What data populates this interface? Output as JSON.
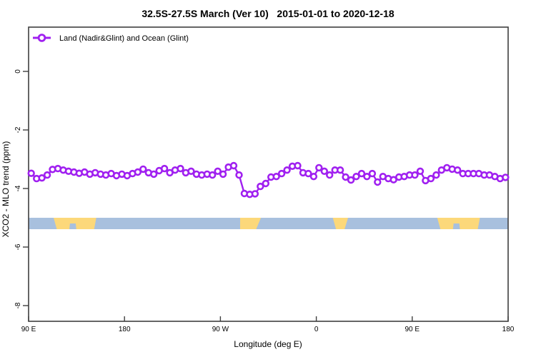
{
  "title": "32.5S-27.5S March (Ver 10)   2015-01-01 to 2020-12-18",
  "legend": {
    "label": "Land (Nadir&Glint) and Ocean (Glint)",
    "position": "top-left-inside"
  },
  "colors": {
    "series": "#a020f0",
    "marker_fill": "#ffffff",
    "ocean_band": "#a8c0de",
    "land_band": "#fcd87a",
    "frame": "#3f3f3f",
    "text": "#000000"
  },
  "axes": {
    "x": {
      "label": "Longitude (deg E)",
      "ticks": [
        {
          "value": 90,
          "label": "90 E"
        },
        {
          "value": 180,
          "label": "180"
        },
        {
          "value": 270,
          "label": "90 W"
        },
        {
          "value": 360,
          "label": "0"
        },
        {
          "value": 450,
          "label": "90 E"
        },
        {
          "value": 540,
          "label": "180"
        }
      ]
    },
    "y": {
      "label": "XCO2 - MLO trend (ppm)",
      "ticks": [
        {
          "value": 0,
          "label": "0"
        },
        {
          "value": -2,
          "label": "-2"
        },
        {
          "value": -4,
          "label": "-4"
        },
        {
          "value": -6,
          "label": "-6"
        },
        {
          "value": -8,
          "label": "-8"
        }
      ],
      "tick_labels_rotated": true
    }
  },
  "chart_data": {
    "type": "line",
    "title": "32.5S-27.5S March (Ver 10)   2015-01-01 to 2020-12-18",
    "xlabel": "Longitude (deg E)",
    "ylabel": "XCO2 - MLO trend (ppm)",
    "xlim": [
      90,
      540
    ],
    "ylim": [
      -8.5,
      1.5
    ],
    "grid": false,
    "x_axis_note": "longitude wraps: 90E -> 180 -> 90W -> 0 -> 90E -> 180, plotted as 90..540 deg",
    "x_start_deg": 92.5,
    "x_step_deg": 5,
    "series": [
      {
        "name": "Land (Nadir&Glint) and Ocean (Glint)",
        "color": "#a020f0",
        "marker": "open-circle",
        "values": [
          -3.48,
          -3.66,
          -3.64,
          -3.54,
          -3.35,
          -3.32,
          -3.37,
          -3.41,
          -3.44,
          -3.48,
          -3.44,
          -3.51,
          -3.46,
          -3.51,
          -3.54,
          -3.49,
          -3.56,
          -3.51,
          -3.56,
          -3.49,
          -3.44,
          -3.34,
          -3.46,
          -3.51,
          -3.39,
          -3.32,
          -3.46,
          -3.37,
          -3.32,
          -3.46,
          -3.41,
          -3.51,
          -3.54,
          -3.51,
          -3.54,
          -3.41,
          -3.51,
          -3.27,
          -3.22,
          -3.54,
          -4.17,
          -4.2,
          -4.18,
          -3.93,
          -3.83,
          -3.61,
          -3.59,
          -3.49,
          -3.37,
          -3.24,
          -3.22,
          -3.46,
          -3.49,
          -3.59,
          -3.29,
          -3.41,
          -3.54,
          -3.37,
          -3.37,
          -3.61,
          -3.71,
          -3.59,
          -3.49,
          -3.59,
          -3.49,
          -3.78,
          -3.59,
          -3.66,
          -3.7,
          -3.61,
          -3.59,
          -3.54,
          -3.54,
          -3.41,
          -3.73,
          -3.66,
          -3.54,
          -3.37,
          -3.29,
          -3.34,
          -3.37,
          -3.49,
          -3.49,
          -3.49,
          -3.49,
          -3.54,
          -3.54,
          -3.59,
          -3.66,
          -3.62
        ]
      }
    ],
    "surface_band": {
      "y_top_value": -5.0,
      "y_bottom_value": -5.39,
      "ocean_color": "#a8c0de",
      "land_color": "#fcd87a",
      "land_polygons": [
        {
          "name": "australia",
          "points": [
            [
              113.5,
              0
            ],
            [
              153.5,
              0
            ],
            [
              151.5,
              1
            ],
            [
              134.8,
              1
            ],
            [
              134.2,
              0.5
            ],
            [
              128.8,
              0.5
            ],
            [
              128.2,
              1
            ],
            [
              116.5,
              1
            ]
          ]
        },
        {
          "name": "south-america",
          "points": [
            [
              288.5,
              0
            ],
            [
              308,
              0
            ],
            [
              303.5,
              1
            ],
            [
              288.5,
              1
            ]
          ]
        },
        {
          "name": "southern-africa",
          "points": [
            [
              375.5,
              0
            ],
            [
              389.8,
              0
            ],
            [
              386.5,
              1
            ],
            [
              378.5,
              1
            ]
          ]
        },
        {
          "name": "australia-repeat",
          "points": [
            [
              473.5,
              0
            ],
            [
              513.5,
              0
            ],
            [
              511.5,
              1
            ],
            [
              494.8,
              1
            ],
            [
              494.2,
              0.5
            ],
            [
              488.8,
              0.5
            ],
            [
              488.2,
              1
            ],
            [
              476.5,
              1
            ]
          ]
        }
      ]
    }
  }
}
